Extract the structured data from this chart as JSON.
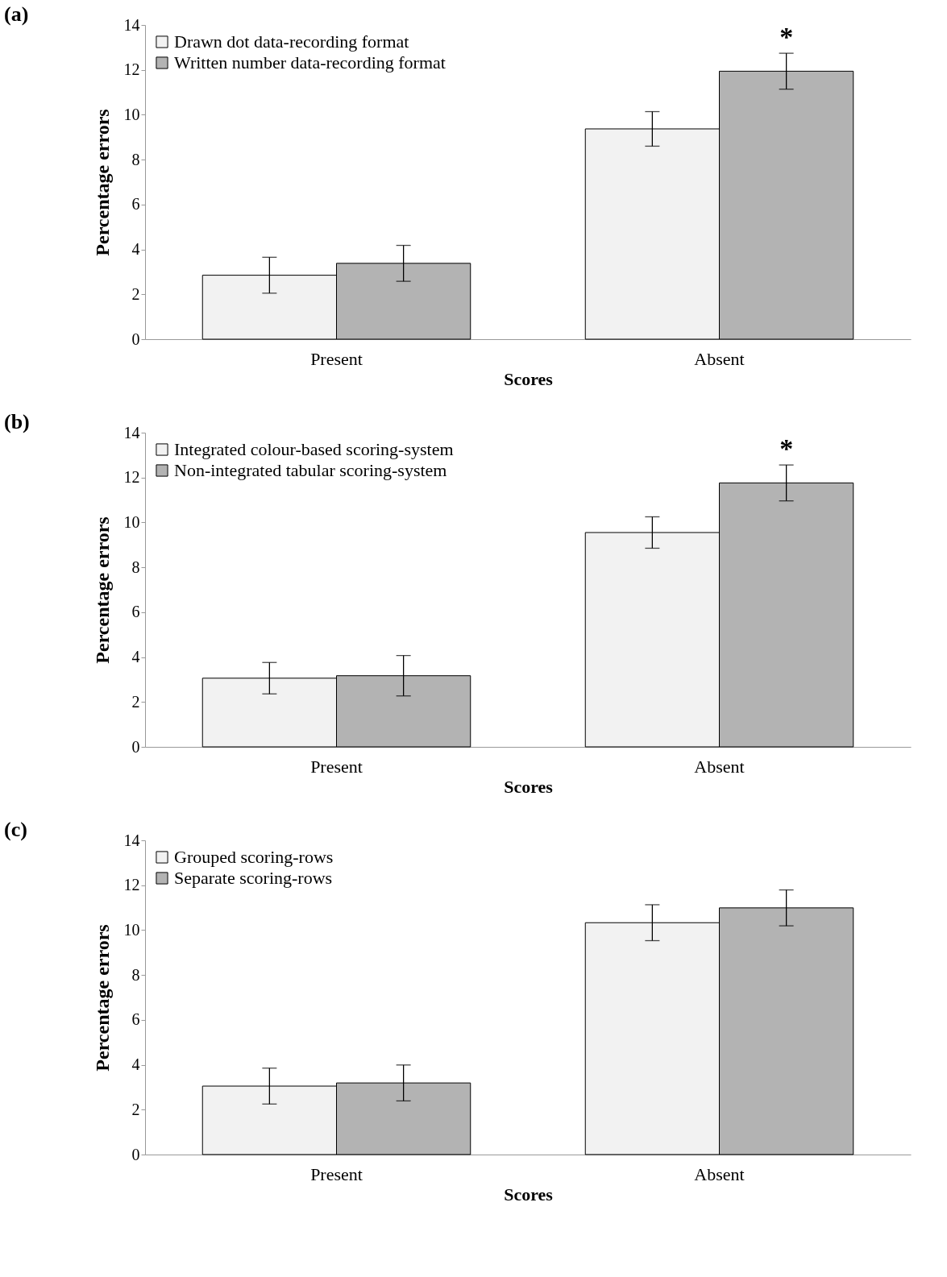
{
  "chart_data": [
    {
      "type": "bar",
      "title": "(a)",
      "xlabel": "Scores",
      "ylabel": "Percentage errors",
      "categories": [
        "Present",
        "Absent"
      ],
      "series": [
        {
          "name": "Drawn dot data-recording format",
          "color": "#f2f2f2",
          "values": [
            2.85,
            9.37
          ],
          "errors": [
            0.8,
            0.77
          ]
        },
        {
          "name": "Written number data-recording format",
          "color": "#b3b3b3",
          "values": [
            3.38,
            11.94
          ],
          "errors": [
            0.8,
            0.8
          ]
        }
      ],
      "ylim": [
        0,
        14
      ],
      "yticks": [
        0,
        2,
        4,
        6,
        8,
        10,
        12,
        14
      ],
      "grid": false,
      "legend": "top left",
      "annotations": [
        "*"
      ]
    },
    {
      "type": "bar",
      "title": "(b)",
      "xlabel": "Scores",
      "ylabel": "Percentage errors",
      "categories": [
        "Present",
        "Absent"
      ],
      "series": [
        {
          "name": "Integrated colour-based scoring-system",
          "color": "#f2f2f2",
          "values": [
            3.06,
            9.55
          ],
          "errors": [
            0.7,
            0.7
          ]
        },
        {
          "name": "Non-integrated tabular scoring-system",
          "color": "#b3b3b3",
          "values": [
            3.17,
            11.76
          ],
          "errors": [
            0.9,
            0.8
          ]
        }
      ],
      "ylim": [
        0,
        14
      ],
      "yticks": [
        0,
        2,
        4,
        6,
        8,
        10,
        12,
        14
      ],
      "grid": false,
      "legend": "top left",
      "annotations": [
        "*"
      ]
    },
    {
      "type": "bar",
      "title": "(c)",
      "xlabel": "Scores",
      "ylabel": "Percentage errors",
      "categories": [
        "Present",
        "Absent"
      ],
      "series": [
        {
          "name": "Grouped scoring-rows",
          "color": "#f2f2f2",
          "values": [
            3.05,
            10.33
          ],
          "errors": [
            0.8,
            0.8
          ]
        },
        {
          "name": "Separate scoring-rows",
          "color": "#b3b3b3",
          "values": [
            3.19,
            10.99
          ],
          "errors": [
            0.8,
            0.8
          ]
        }
      ],
      "ylim": [
        0,
        14
      ],
      "yticks": [
        0,
        2,
        4,
        6,
        8,
        10,
        12,
        14
      ],
      "grid": false,
      "legend": "top left"
    }
  ]
}
